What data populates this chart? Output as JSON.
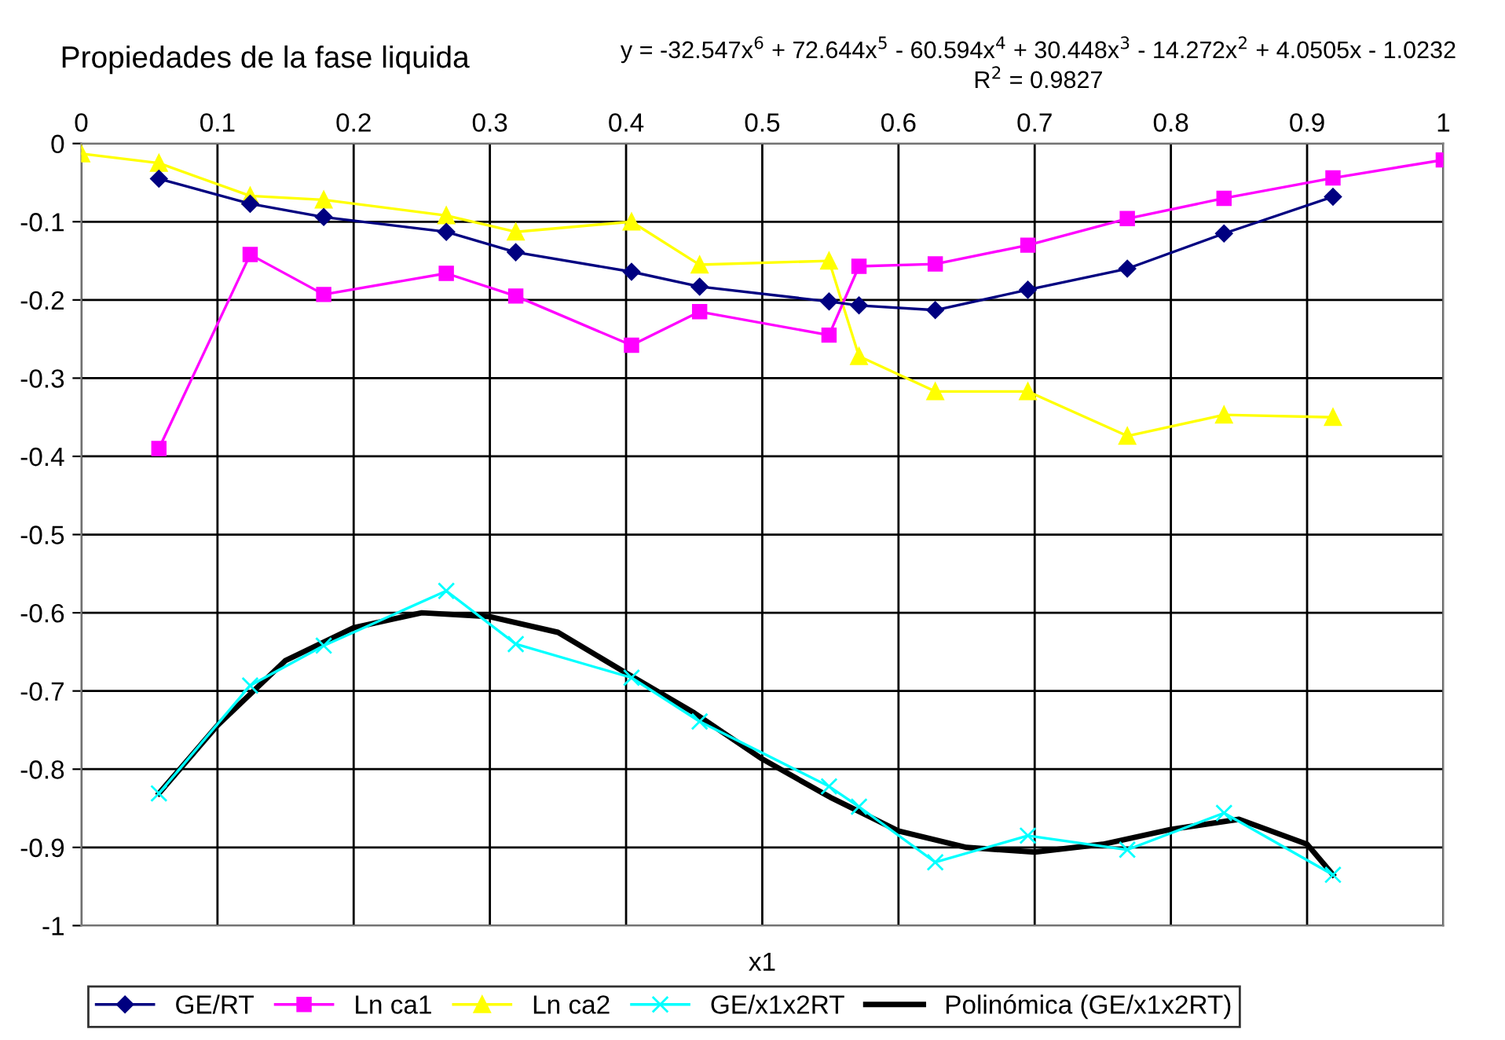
{
  "chart_data": {
    "type": "line",
    "title": "Propiedades de la fase liquida",
    "xlabel": "x1",
    "annotations": [
      "y = -32.547x$^{6}$ + 72.644x$^{5}$ - 60.594x$^{4}$ + 30.448x$^{3}$ - 14.272x$^{2}$ + 4.0505x - 1.0232",
      "R$^{2}$ = 0.9827"
    ],
    "xlim": [
      0,
      1
    ],
    "xticks": [
      0,
      0.1,
      0.2,
      0.3,
      0.4,
      0.5,
      0.6,
      0.7,
      0.8,
      0.9,
      1
    ],
    "ylim": [
      -1,
      0
    ],
    "yticks": [
      -1,
      -0.9,
      -0.8,
      -0.7,
      -0.6,
      -0.5,
      -0.4,
      -0.3,
      -0.2,
      -0.1,
      0
    ],
    "grid": true,
    "legend": "bottom",
    "line_style": "solid",
    "series": [
      {
        "name": "GE/RT",
        "color": "#000080",
        "marker": "diamond",
        "x": [
          0.057,
          0.124,
          0.178,
          0.268,
          0.319,
          0.404,
          0.454,
          0.549,
          0.571,
          0.627,
          0.695,
          0.768,
          0.839,
          0.919
        ],
        "values": [
          -0.045,
          -0.077,
          -0.094,
          -0.113,
          -0.139,
          -0.164,
          -0.183,
          -0.202,
          -0.207,
          -0.213,
          -0.187,
          -0.16,
          -0.115,
          -0.068
        ]
      },
      {
        "name": "Ln ca1",
        "color": "#ff00ff",
        "marker": "square",
        "x": [
          0.057,
          0.124,
          0.178,
          0.268,
          0.319,
          0.404,
          0.454,
          0.549,
          0.571,
          0.627,
          0.695,
          0.768,
          0.839,
          0.919,
          1.0
        ],
        "values": [
          -0.39,
          -0.142,
          -0.193,
          -0.166,
          -0.195,
          -0.258,
          -0.215,
          -0.245,
          -0.157,
          -0.154,
          -0.13,
          -0.096,
          -0.07,
          -0.044,
          -0.021
        ]
      },
      {
        "name": "Ln ca2",
        "color": "#ffff00",
        "marker": "triangle",
        "x": [
          0,
          0.057,
          0.124,
          0.178,
          0.268,
          0.319,
          0.404,
          0.454,
          0.549,
          0.571,
          0.627,
          0.695,
          0.768,
          0.839,
          0.919
        ],
        "values": [
          -0.013,
          -0.025,
          -0.067,
          -0.072,
          -0.092,
          -0.113,
          -0.1,
          -0.155,
          -0.15,
          -0.272,
          -0.317,
          -0.317,
          -0.374,
          -0.347,
          -0.35
        ]
      },
      {
        "name": "GE/x1x2RT",
        "color": "#00ffff",
        "marker": "cross",
        "x": [
          0.057,
          0.124,
          0.178,
          0.268,
          0.319,
          0.404,
          0.454,
          0.549,
          0.571,
          0.627,
          0.695,
          0.768,
          0.839,
          0.919
        ],
        "values": [
          -0.831,
          -0.693,
          -0.642,
          -0.572,
          -0.64,
          -0.683,
          -0.739,
          -0.822,
          -0.848,
          -0.919,
          -0.885,
          -0.903,
          -0.856,
          -0.935
        ]
      },
      {
        "name": "Polinómica (GE/x1x2RT)",
        "color": "#000000",
        "marker": "none",
        "x": [
          0.057,
          0.1,
          0.15,
          0.2,
          0.25,
          0.3,
          0.35,
          0.4,
          0.45,
          0.5,
          0.55,
          0.6,
          0.65,
          0.7,
          0.75,
          0.8,
          0.85,
          0.9,
          0.919
        ],
        "values": [
          -0.831,
          -0.744,
          -0.661,
          -0.619,
          -0.6,
          -0.605,
          -0.625,
          -0.677,
          -0.728,
          -0.787,
          -0.836,
          -0.879,
          -0.9,
          -0.906,
          -0.896,
          -0.877,
          -0.864,
          -0.896,
          -0.935
        ]
      }
    ]
  }
}
